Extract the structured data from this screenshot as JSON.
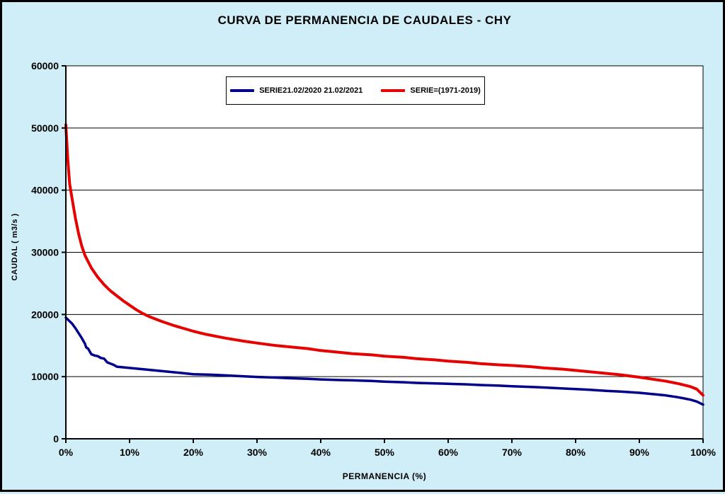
{
  "chart_data": {
    "type": "line",
    "title": "CURVA DE PERMANENCIA DE CAUDALES - CHY",
    "xlabel": "PERMANENCIA (%)",
    "ylabel": "CAUDAL ( m3/s )",
    "xlim": [
      0,
      100
    ],
    "ylim": [
      0,
      60000
    ],
    "xticks": [
      0,
      10,
      20,
      30,
      40,
      50,
      60,
      70,
      80,
      90,
      100
    ],
    "yticks": [
      0,
      10000,
      20000,
      30000,
      40000,
      50000,
      60000
    ],
    "grid": "horizontal",
    "legend_position": "top-center",
    "background_color": "#cfeef7",
    "plot_background_color": "#ffffff",
    "series": [
      {
        "name": "SERIE21.02/2020 21.02/2021",
        "color": "#00008c",
        "width": 3.5,
        "points": [
          [
            0,
            19500
          ],
          [
            0.5,
            19000
          ],
          [
            1,
            18500
          ],
          [
            1.5,
            17800
          ],
          [
            2,
            17000
          ],
          [
            2.5,
            16200
          ],
          [
            3,
            15300
          ],
          [
            3.2,
            14700
          ],
          [
            3.5,
            14500
          ],
          [
            4,
            13600
          ],
          [
            4.5,
            13400
          ],
          [
            5,
            13300
          ],
          [
            5.5,
            13000
          ],
          [
            6,
            12900
          ],
          [
            6.5,
            12300
          ],
          [
            7,
            12100
          ],
          [
            7.5,
            11900
          ],
          [
            8,
            11600
          ],
          [
            9,
            11500
          ],
          [
            10,
            11400
          ],
          [
            11,
            11300
          ],
          [
            12,
            11200
          ],
          [
            14,
            11000
          ],
          [
            16,
            10800
          ],
          [
            18,
            10600
          ],
          [
            20,
            10400
          ],
          [
            23,
            10300
          ],
          [
            25,
            10200
          ],
          [
            28,
            10050
          ],
          [
            30,
            9950
          ],
          [
            33,
            9850
          ],
          [
            35,
            9750
          ],
          [
            38,
            9650
          ],
          [
            40,
            9550
          ],
          [
            43,
            9450
          ],
          [
            45,
            9400
          ],
          [
            48,
            9300
          ],
          [
            50,
            9200
          ],
          [
            53,
            9100
          ],
          [
            55,
            9000
          ],
          [
            58,
            8900
          ],
          [
            60,
            8850
          ],
          [
            63,
            8750
          ],
          [
            65,
            8650
          ],
          [
            68,
            8550
          ],
          [
            70,
            8450
          ],
          [
            73,
            8350
          ],
          [
            75,
            8250
          ],
          [
            78,
            8100
          ],
          [
            80,
            8000
          ],
          [
            82,
            7900
          ],
          [
            85,
            7700
          ],
          [
            87,
            7600
          ],
          [
            90,
            7400
          ],
          [
            92,
            7200
          ],
          [
            94,
            7000
          ],
          [
            96,
            6700
          ],
          [
            97,
            6500
          ],
          [
            98,
            6300
          ],
          [
            99,
            6000
          ],
          [
            100,
            5500
          ]
        ]
      },
      {
        "name": "SERIE=(1971-2019)",
        "color": "#e60000",
        "width": 4,
        "points": [
          [
            0,
            50500
          ],
          [
            0.3,
            45000
          ],
          [
            0.6,
            41000
          ],
          [
            1,
            38500
          ],
          [
            1.5,
            35500
          ],
          [
            2,
            33000
          ],
          [
            2.5,
            31000
          ],
          [
            3,
            29500
          ],
          [
            4,
            27500
          ],
          [
            5,
            26000
          ],
          [
            6,
            24800
          ],
          [
            7,
            23800
          ],
          [
            8,
            23000
          ],
          [
            9,
            22200
          ],
          [
            10,
            21500
          ],
          [
            11,
            20800
          ],
          [
            12,
            20200
          ],
          [
            13,
            19700
          ],
          [
            14,
            19300
          ],
          [
            15,
            18900
          ],
          [
            17,
            18200
          ],
          [
            20,
            17300
          ],
          [
            22,
            16800
          ],
          [
            25,
            16200
          ],
          [
            28,
            15700
          ],
          [
            30,
            15400
          ],
          [
            33,
            15000
          ],
          [
            35,
            14800
          ],
          [
            38,
            14500
          ],
          [
            40,
            14200
          ],
          [
            43,
            13900
          ],
          [
            45,
            13700
          ],
          [
            48,
            13500
          ],
          [
            50,
            13300
          ],
          [
            53,
            13100
          ],
          [
            55,
            12900
          ],
          [
            58,
            12700
          ],
          [
            60,
            12500
          ],
          [
            63,
            12300
          ],
          [
            65,
            12100
          ],
          [
            68,
            11900
          ],
          [
            70,
            11800
          ],
          [
            73,
            11600
          ],
          [
            75,
            11400
          ],
          [
            78,
            11200
          ],
          [
            80,
            11000
          ],
          [
            82,
            10800
          ],
          [
            85,
            10500
          ],
          [
            87,
            10300
          ],
          [
            90,
            9900
          ],
          [
            92,
            9600
          ],
          [
            94,
            9300
          ],
          [
            96,
            8900
          ],
          [
            98,
            8400
          ],
          [
            99,
            8000
          ],
          [
            100,
            7000
          ]
        ]
      }
    ]
  }
}
